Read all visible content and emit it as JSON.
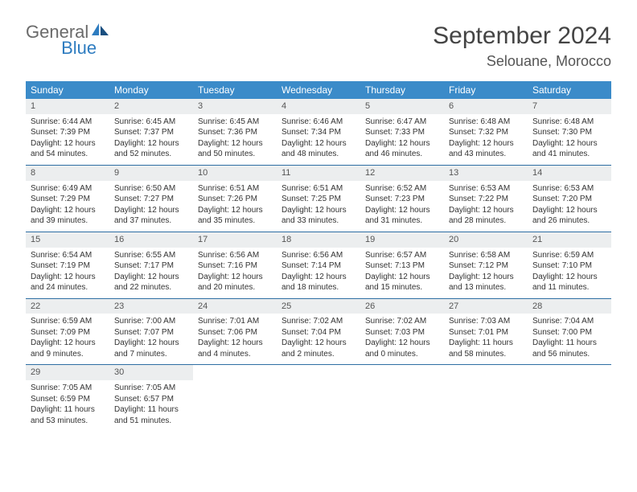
{
  "logo": {
    "text1": "General",
    "text2": "Blue"
  },
  "title": "September 2024",
  "subtitle": "Selouane, Morocco",
  "colors": {
    "header_bg": "#3b8bc9",
    "header_text": "#ffffff",
    "daynum_bg": "#eceeef",
    "row_border": "#2e6ea3",
    "logo_gray": "#6a6a6a",
    "logo_blue": "#2e7cc0",
    "logo_dark_blue": "#1a4f80"
  },
  "day_headers": [
    "Sunday",
    "Monday",
    "Tuesday",
    "Wednesday",
    "Thursday",
    "Friday",
    "Saturday"
  ],
  "weeks": [
    [
      {
        "num": "1",
        "sunrise": "Sunrise: 6:44 AM",
        "sunset": "Sunset: 7:39 PM",
        "daylight": "Daylight: 12 hours and 54 minutes."
      },
      {
        "num": "2",
        "sunrise": "Sunrise: 6:45 AM",
        "sunset": "Sunset: 7:37 PM",
        "daylight": "Daylight: 12 hours and 52 minutes."
      },
      {
        "num": "3",
        "sunrise": "Sunrise: 6:45 AM",
        "sunset": "Sunset: 7:36 PM",
        "daylight": "Daylight: 12 hours and 50 minutes."
      },
      {
        "num": "4",
        "sunrise": "Sunrise: 6:46 AM",
        "sunset": "Sunset: 7:34 PM",
        "daylight": "Daylight: 12 hours and 48 minutes."
      },
      {
        "num": "5",
        "sunrise": "Sunrise: 6:47 AM",
        "sunset": "Sunset: 7:33 PM",
        "daylight": "Daylight: 12 hours and 46 minutes."
      },
      {
        "num": "6",
        "sunrise": "Sunrise: 6:48 AM",
        "sunset": "Sunset: 7:32 PM",
        "daylight": "Daylight: 12 hours and 43 minutes."
      },
      {
        "num": "7",
        "sunrise": "Sunrise: 6:48 AM",
        "sunset": "Sunset: 7:30 PM",
        "daylight": "Daylight: 12 hours and 41 minutes."
      }
    ],
    [
      {
        "num": "8",
        "sunrise": "Sunrise: 6:49 AM",
        "sunset": "Sunset: 7:29 PM",
        "daylight": "Daylight: 12 hours and 39 minutes."
      },
      {
        "num": "9",
        "sunrise": "Sunrise: 6:50 AM",
        "sunset": "Sunset: 7:27 PM",
        "daylight": "Daylight: 12 hours and 37 minutes."
      },
      {
        "num": "10",
        "sunrise": "Sunrise: 6:51 AM",
        "sunset": "Sunset: 7:26 PM",
        "daylight": "Daylight: 12 hours and 35 minutes."
      },
      {
        "num": "11",
        "sunrise": "Sunrise: 6:51 AM",
        "sunset": "Sunset: 7:25 PM",
        "daylight": "Daylight: 12 hours and 33 minutes."
      },
      {
        "num": "12",
        "sunrise": "Sunrise: 6:52 AM",
        "sunset": "Sunset: 7:23 PM",
        "daylight": "Daylight: 12 hours and 31 minutes."
      },
      {
        "num": "13",
        "sunrise": "Sunrise: 6:53 AM",
        "sunset": "Sunset: 7:22 PM",
        "daylight": "Daylight: 12 hours and 28 minutes."
      },
      {
        "num": "14",
        "sunrise": "Sunrise: 6:53 AM",
        "sunset": "Sunset: 7:20 PM",
        "daylight": "Daylight: 12 hours and 26 minutes."
      }
    ],
    [
      {
        "num": "15",
        "sunrise": "Sunrise: 6:54 AM",
        "sunset": "Sunset: 7:19 PM",
        "daylight": "Daylight: 12 hours and 24 minutes."
      },
      {
        "num": "16",
        "sunrise": "Sunrise: 6:55 AM",
        "sunset": "Sunset: 7:17 PM",
        "daylight": "Daylight: 12 hours and 22 minutes."
      },
      {
        "num": "17",
        "sunrise": "Sunrise: 6:56 AM",
        "sunset": "Sunset: 7:16 PM",
        "daylight": "Daylight: 12 hours and 20 minutes."
      },
      {
        "num": "18",
        "sunrise": "Sunrise: 6:56 AM",
        "sunset": "Sunset: 7:14 PM",
        "daylight": "Daylight: 12 hours and 18 minutes."
      },
      {
        "num": "19",
        "sunrise": "Sunrise: 6:57 AM",
        "sunset": "Sunset: 7:13 PM",
        "daylight": "Daylight: 12 hours and 15 minutes."
      },
      {
        "num": "20",
        "sunrise": "Sunrise: 6:58 AM",
        "sunset": "Sunset: 7:12 PM",
        "daylight": "Daylight: 12 hours and 13 minutes."
      },
      {
        "num": "21",
        "sunrise": "Sunrise: 6:59 AM",
        "sunset": "Sunset: 7:10 PM",
        "daylight": "Daylight: 12 hours and 11 minutes."
      }
    ],
    [
      {
        "num": "22",
        "sunrise": "Sunrise: 6:59 AM",
        "sunset": "Sunset: 7:09 PM",
        "daylight": "Daylight: 12 hours and 9 minutes."
      },
      {
        "num": "23",
        "sunrise": "Sunrise: 7:00 AM",
        "sunset": "Sunset: 7:07 PM",
        "daylight": "Daylight: 12 hours and 7 minutes."
      },
      {
        "num": "24",
        "sunrise": "Sunrise: 7:01 AM",
        "sunset": "Sunset: 7:06 PM",
        "daylight": "Daylight: 12 hours and 4 minutes."
      },
      {
        "num": "25",
        "sunrise": "Sunrise: 7:02 AM",
        "sunset": "Sunset: 7:04 PM",
        "daylight": "Daylight: 12 hours and 2 minutes."
      },
      {
        "num": "26",
        "sunrise": "Sunrise: 7:02 AM",
        "sunset": "Sunset: 7:03 PM",
        "daylight": "Daylight: 12 hours and 0 minutes."
      },
      {
        "num": "27",
        "sunrise": "Sunrise: 7:03 AM",
        "sunset": "Sunset: 7:01 PM",
        "daylight": "Daylight: 11 hours and 58 minutes."
      },
      {
        "num": "28",
        "sunrise": "Sunrise: 7:04 AM",
        "sunset": "Sunset: 7:00 PM",
        "daylight": "Daylight: 11 hours and 56 minutes."
      }
    ],
    [
      {
        "num": "29",
        "sunrise": "Sunrise: 7:05 AM",
        "sunset": "Sunset: 6:59 PM",
        "daylight": "Daylight: 11 hours and 53 minutes."
      },
      {
        "num": "30",
        "sunrise": "Sunrise: 7:05 AM",
        "sunset": "Sunset: 6:57 PM",
        "daylight": "Daylight: 11 hours and 51 minutes."
      },
      {
        "empty": true
      },
      {
        "empty": true
      },
      {
        "empty": true
      },
      {
        "empty": true
      },
      {
        "empty": true
      }
    ]
  ]
}
